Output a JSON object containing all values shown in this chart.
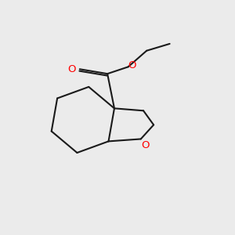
{
  "background_color": "#ebebeb",
  "bond_color": "#1a1a1a",
  "oxygen_color": "#ff0000",
  "line_width": 1.5,
  "figsize": [
    3.0,
    3.0
  ],
  "dpi": 100,
  "xlim": [
    0,
    10
  ],
  "ylim": [
    0,
    10
  ]
}
